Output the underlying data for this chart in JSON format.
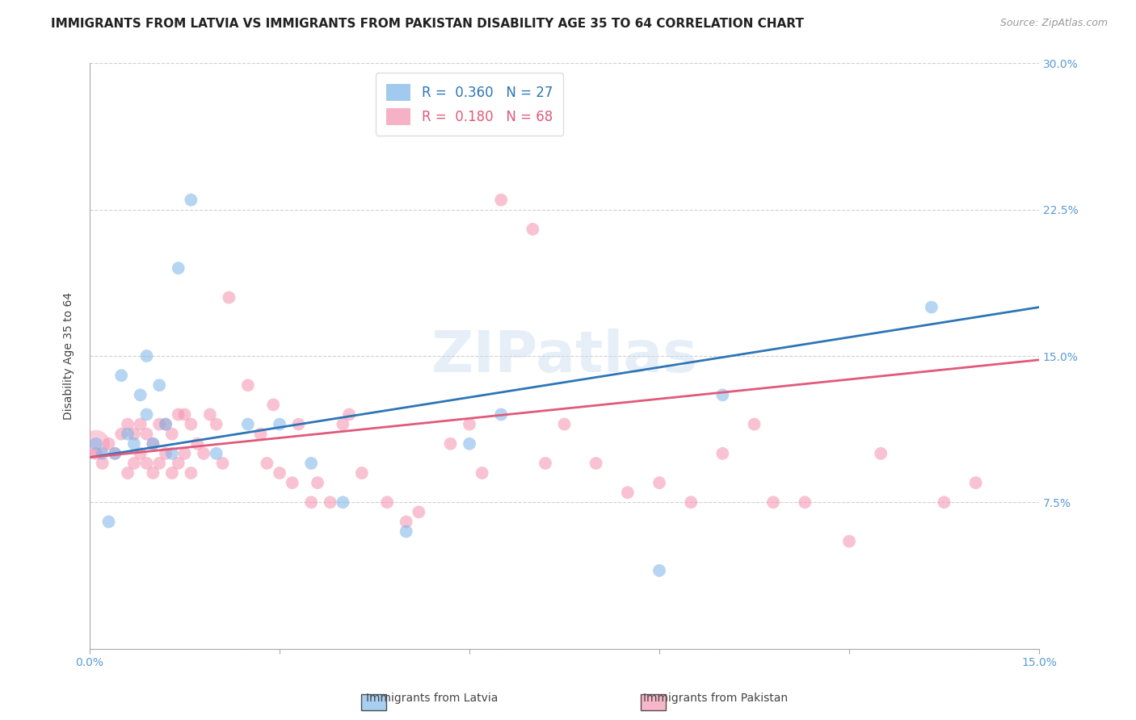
{
  "title": "IMMIGRANTS FROM LATVIA VS IMMIGRANTS FROM PAKISTAN DISABILITY AGE 35 TO 64 CORRELATION CHART",
  "source": "Source: ZipAtlas.com",
  "ylabel": "Disability Age 35 to 64",
  "xlim": [
    0.0,
    0.15
  ],
  "ylim": [
    0.0,
    0.3
  ],
  "latvia_color": "#7ab4e8",
  "pakistan_color": "#f590b0",
  "latvia_line_color": "#2e75b6",
  "pakistan_line_color": "#e05a7a",
  "latvia_R": 0.36,
  "latvia_N": 27,
  "pakistan_R": 0.18,
  "pakistan_N": 68,
  "watermark": "ZIPatlas",
  "grid_color": "#cccccc",
  "background_color": "#ffffff",
  "right_axis_color": "#5b9bd5",
  "title_fontsize": 11,
  "tick_fontsize": 10,
  "latvia_x": [
    0.001,
    0.002,
    0.003,
    0.004,
    0.005,
    0.006,
    0.007,
    0.008,
    0.009,
    0.009,
    0.01,
    0.011,
    0.012,
    0.013,
    0.014,
    0.016,
    0.02,
    0.025,
    0.03,
    0.035,
    0.04,
    0.05,
    0.06,
    0.065,
    0.09,
    0.1,
    0.133
  ],
  "latvia_y": [
    0.105,
    0.1,
    0.065,
    0.1,
    0.14,
    0.11,
    0.105,
    0.13,
    0.12,
    0.15,
    0.105,
    0.135,
    0.115,
    0.1,
    0.195,
    0.23,
    0.1,
    0.115,
    0.115,
    0.095,
    0.075,
    0.06,
    0.105,
    0.12,
    0.04,
    0.13,
    0.175
  ],
  "pakistan_x": [
    0.001,
    0.002,
    0.003,
    0.004,
    0.005,
    0.006,
    0.006,
    0.007,
    0.007,
    0.008,
    0.008,
    0.009,
    0.009,
    0.01,
    0.01,
    0.011,
    0.011,
    0.012,
    0.012,
    0.013,
    0.013,
    0.014,
    0.014,
    0.015,
    0.015,
    0.016,
    0.016,
    0.017,
    0.018,
    0.019,
    0.02,
    0.021,
    0.022,
    0.025,
    0.027,
    0.028,
    0.029,
    0.03,
    0.032,
    0.033,
    0.035,
    0.036,
    0.038,
    0.04,
    0.041,
    0.043,
    0.047,
    0.05,
    0.052,
    0.057,
    0.06,
    0.062,
    0.065,
    0.07,
    0.072,
    0.075,
    0.08,
    0.085,
    0.09,
    0.095,
    0.1,
    0.105,
    0.108,
    0.113,
    0.12,
    0.125,
    0.135,
    0.14
  ],
  "pakistan_y": [
    0.1,
    0.095,
    0.105,
    0.1,
    0.11,
    0.09,
    0.115,
    0.095,
    0.11,
    0.1,
    0.115,
    0.095,
    0.11,
    0.09,
    0.105,
    0.095,
    0.115,
    0.1,
    0.115,
    0.09,
    0.11,
    0.095,
    0.12,
    0.1,
    0.12,
    0.09,
    0.115,
    0.105,
    0.1,
    0.12,
    0.115,
    0.095,
    0.18,
    0.135,
    0.11,
    0.095,
    0.125,
    0.09,
    0.085,
    0.115,
    0.075,
    0.085,
    0.075,
    0.115,
    0.12,
    0.09,
    0.075,
    0.065,
    0.07,
    0.105,
    0.115,
    0.09,
    0.23,
    0.215,
    0.095,
    0.115,
    0.095,
    0.08,
    0.085,
    0.075,
    0.1,
    0.115,
    0.075,
    0.075,
    0.055,
    0.1,
    0.075,
    0.085
  ],
  "latvia_trendline_x": [
    0.0,
    0.15
  ],
  "latvia_trendline_y": [
    0.098,
    0.175
  ],
  "pakistan_trendline_x": [
    0.0,
    0.15
  ],
  "pakistan_trendline_y": [
    0.098,
    0.148
  ],
  "large_pakistan_x": [
    0.001
  ],
  "large_pakistan_y": [
    0.105
  ],
  "large_pakistan_size": 600,
  "scatter_size": 130
}
